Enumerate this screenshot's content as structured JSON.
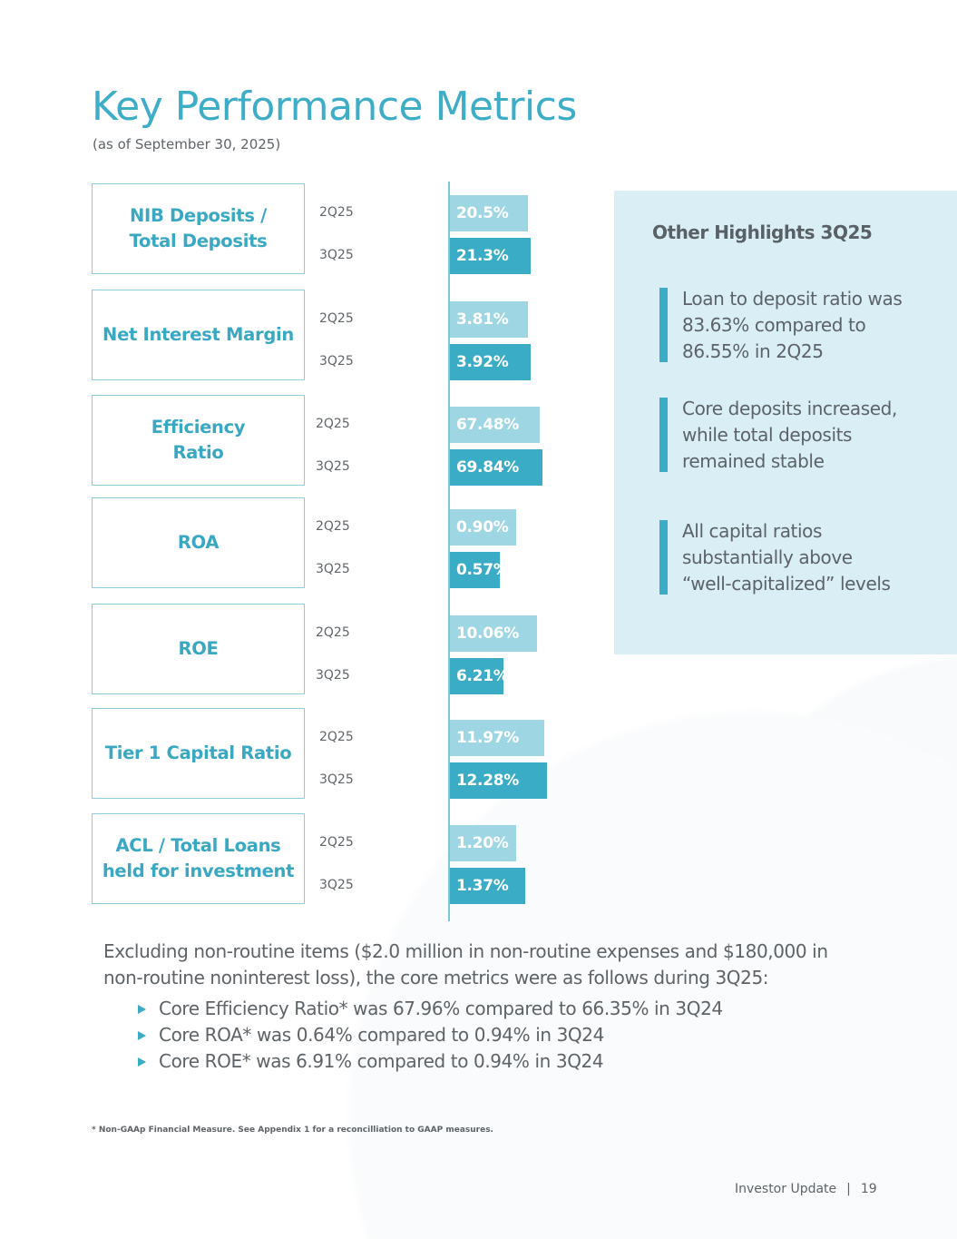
{
  "page": {
    "title": "Key Performance Metrics",
    "subtitle": "(as of September 30, 2025)"
  },
  "colors": {
    "accent": "#3eaec8",
    "bar_prev": "#9fd6e3",
    "bar_curr": "#3aacc6",
    "panel_bg": "#d9eff5",
    "text": "#5d6367"
  },
  "chart_data": {
    "type": "bar",
    "orientation": "horizontal",
    "title": "Key Performance Metrics",
    "series_names": [
      "2Q25",
      "3Q25"
    ],
    "metrics": [
      {
        "name": "NIB Deposits / Total Deposits",
        "label_lines": [
          "NIB Deposits /",
          "Total Deposits"
        ],
        "values": [
          20.5,
          21.3
        ],
        "labels": [
          "20.5%",
          "21.3%"
        ]
      },
      {
        "name": "Net Interest Margin",
        "label_lines": [
          "Net Interest Margin"
        ],
        "values": [
          3.81,
          3.92
        ],
        "labels": [
          "3.81%",
          "3.92%"
        ]
      },
      {
        "name": "Efficiency Ratio",
        "label_lines": [
          "Efficiency",
          "Ratio"
        ],
        "values": [
          67.48,
          69.84
        ],
        "labels": [
          "67.48%",
          "69.84%"
        ]
      },
      {
        "name": "ROA",
        "label_lines": [
          "ROA"
        ],
        "values": [
          0.9,
          0.57
        ],
        "labels": [
          "0.90%",
          "0.57%"
        ]
      },
      {
        "name": "ROE",
        "label_lines": [
          "ROE"
        ],
        "values": [
          10.06,
          6.21
        ],
        "labels": [
          "10.06%",
          "6.21%"
        ]
      },
      {
        "name": "Tier 1 Capital Ratio",
        "label_lines": [
          "Tier 1 Capital Ratio"
        ],
        "values": [
          11.97,
          12.28
        ],
        "labels": [
          "11.97%",
          "12.28%"
        ]
      },
      {
        "name": "ACL / Total Loans held for investment",
        "label_lines": [
          "ACL / Total Loans",
          "held for investment"
        ],
        "values": [
          1.2,
          1.37
        ],
        "labels": [
          "1.20%",
          "1.37%"
        ]
      }
    ],
    "xlabel": "",
    "ylabel": "",
    "grid": false,
    "legend": "none"
  },
  "highlights": {
    "title": "Other Highlights 3Q25",
    "items": [
      {
        "lines": [
          "Loan to deposit ratio was",
          "83.63% compared to",
          "86.55% in 2Q25"
        ]
      },
      {
        "lines": [
          "Core deposits increased,",
          "while total deposits",
          "remained stable"
        ]
      },
      {
        "lines": [
          "All capital ratios",
          "substantially above",
          "“well-capitalized” levels"
        ]
      }
    ]
  },
  "core": {
    "intro": "Excluding non-routine items ($2.0 million in non-routine expenses and $180,000 in non-routine noninterest loss), the core metrics were as follows during 3Q25:",
    "items": [
      "Core Efficiency Ratio* was 67.96% compared to 66.35% in 3Q24",
      "Core ROA* was 0.64% compared to 0.94% in 3Q24",
      "Core ROE* was 6.91% compared to 0.94% in 3Q24"
    ]
  },
  "footnote": "* Non-GAAp Financial Measure. See Appendix 1 for a reconcilliation to GAAP measures.",
  "footer": {
    "label": "Investor Update",
    "separator": "|",
    "page_number": "19"
  }
}
